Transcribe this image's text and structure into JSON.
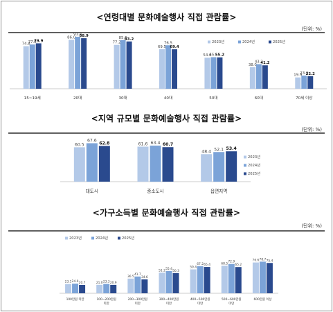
{
  "colors": {
    "s2023": "#b3c9e8",
    "s2024": "#7ba3d8",
    "s2025": "#2a4a8e",
    "rule": "#2b2b2b",
    "axis": "#bdbdbd"
  },
  "chart_data": [
    {
      "type": "bar",
      "title": "<연령대별 문화예술행사 직접 관람률>",
      "unit": "(단위: %)",
      "legend": "top-right",
      "categories": [
        "15~19세",
        "20대",
        "30대",
        "40대",
        "50대",
        "60대",
        "70세 이상"
      ],
      "series": [
        {
          "name": "2023년",
          "values": [
            74.8,
            86.0,
            77.2,
            69.5,
            54.6,
            38.0,
            19.9
          ]
        },
        {
          "name": "2024년",
          "values": [
            77.8,
            91.4,
            85.6,
            76.5,
            55.5,
            43.2,
            23.2
          ]
        },
        {
          "name": "2025년",
          "values": [
            79.9,
            88.9,
            83.2,
            69.4,
            55.2,
            41.2,
            22.2
          ]
        }
      ]
    },
    {
      "type": "bar",
      "title": "<지역 규모별 문화예술행사 직접 관람률>",
      "unit": "(단위: %)",
      "legend": "right",
      "categories": [
        "대도시",
        "중소도시",
        "읍면지역"
      ],
      "series": [
        {
          "name": "2023년",
          "values": [
            60.5,
            61.6,
            48.4
          ]
        },
        {
          "name": "2024년",
          "values": [
            67.6,
            63.4,
            52.1
          ]
        },
        {
          "name": "2025년",
          "values": [
            62.8,
            60.7,
            53.4
          ]
        }
      ]
    },
    {
      "type": "bar",
      "title": "<가구소득별 문화예술행사 직접 관람률>",
      "unit": "(단위: %)",
      "legend": "top-left",
      "categories": [
        "100만원 미만",
        "100~200만원 미만",
        "200~300만원 미만",
        "300~400만원 미만",
        "400~500만원 미만",
        "500~600만원 미만",
        "600만원 이상"
      ],
      "series": [
        {
          "name": "2023년",
          "values": [
            23.1,
            21.0,
            36.5,
            51.2,
            59.4,
            68.5,
            76.6
          ]
        },
        {
          "name": "2024년",
          "values": [
            24.0,
            23.3,
            41.7,
            55.4,
            67.2,
            72.9,
            78.7
          ]
        },
        {
          "name": "2025년",
          "values": [
            20.7,
            20.9,
            34.6,
            50.3,
            65.4,
            65.2,
            75.4
          ]
        }
      ]
    }
  ]
}
